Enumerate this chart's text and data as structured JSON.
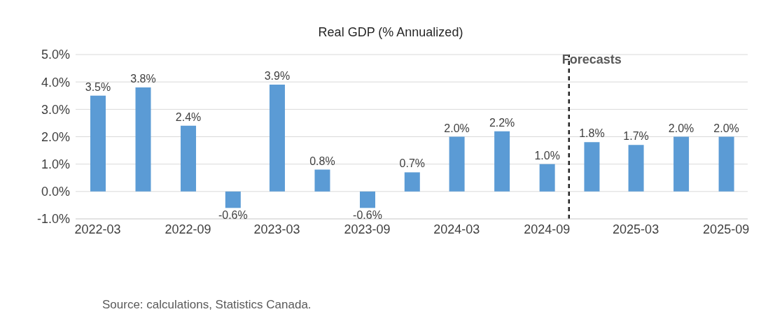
{
  "chart_data": {
    "type": "bar",
    "title": "Real GDP (% Annualized)",
    "x": [
      "2022-03",
      "2022-06",
      "2022-09",
      "2022-12",
      "2023-03",
      "2023-06",
      "2023-09",
      "2023-12",
      "2024-03",
      "2024-06",
      "2024-09",
      "2024-12",
      "2025-03",
      "2025-06",
      "2025-09"
    ],
    "values": [
      3.5,
      3.8,
      2.4,
      -0.6,
      3.9,
      0.8,
      -0.6,
      0.7,
      2.0,
      2.2,
      1.0,
      1.8,
      1.7,
      2.0,
      2.0
    ],
    "value_labels": [
      "3.5%",
      "3.8%",
      "2.4%",
      "-0.6%",
      "3.9%",
      "0.8%",
      "-0.6%",
      "0.7%",
      "2.0%",
      "2.2%",
      "1.0%",
      "1.8%",
      "1.7%",
      "2.0%",
      "2.0%"
    ],
    "color": "#5b9bd5",
    "xlim": [
      "2022-01-15",
      "2025-10-15"
    ],
    "xticks": [
      "2022-03",
      "2022-09",
      "2023-03",
      "2023-09",
      "2024-03",
      "2024-09",
      "2025-03",
      "2025-09"
    ],
    "ylim": [
      -1,
      5
    ],
    "yticks": [
      {
        "value": -1,
        "label": "-1.0%"
      },
      {
        "value": 0,
        "label": "0.0%"
      },
      {
        "value": 1,
        "label": "1.0%"
      },
      {
        "value": 2,
        "label": "2.0%"
      },
      {
        "value": 3,
        "label": "3.0%"
      },
      {
        "value": 4,
        "label": "4.0%"
      },
      {
        "value": 5,
        "label": "5.0%"
      }
    ],
    "grid": "y",
    "ref_lines": [
      {
        "axis": "x",
        "value": "2024-10-16",
        "label": "Forecasts",
        "color": "#262626",
        "line_style": "dashed"
      }
    ],
    "annotations": [
      "Source: calculations, Statistics Canada."
    ]
  }
}
